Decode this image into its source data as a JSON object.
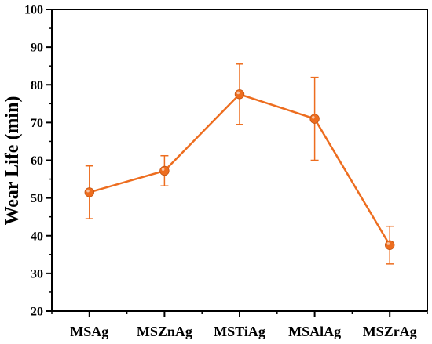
{
  "chart_data": {
    "type": "line",
    "categories": [
      "MSAg",
      "MSZnAg",
      "MSTiAg",
      "MSAlAg",
      "MSZrAg"
    ],
    "series": [
      {
        "values": [
          51.5,
          57.2,
          77.5,
          71.0,
          37.5
        ],
        "err_low": [
          44.5,
          53.2,
          69.5,
          60.0,
          32.5
        ],
        "err_high": [
          58.5,
          61.2,
          85.5,
          82.0,
          42.5
        ],
        "color": "#ed6d1f"
      }
    ],
    "title": "",
    "xlabel": "",
    "ylabel": "Wear Life (min)",
    "ylim": [
      20,
      100
    ],
    "yticks": [
      20,
      30,
      40,
      50,
      60,
      70,
      80,
      90,
      100
    ],
    "grid": false,
    "axis_color": "#000000"
  }
}
